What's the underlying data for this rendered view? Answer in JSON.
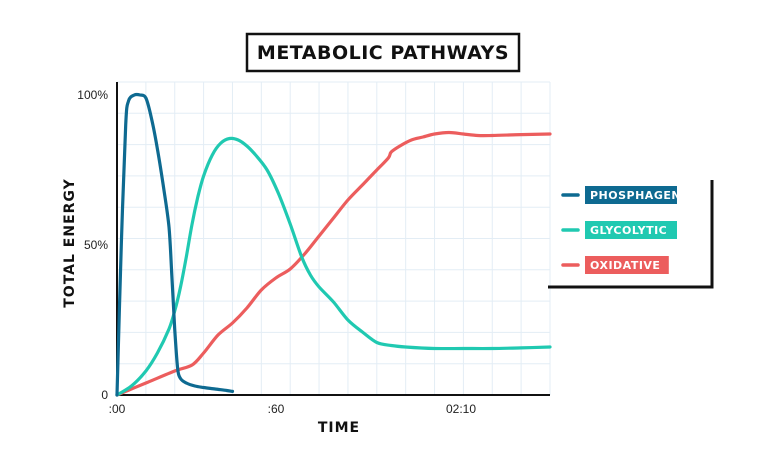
{
  "chart_data": {
    "type": "line",
    "title": "METABOLIC PATHWAYS",
    "xlabel": "TIME",
    "ylabel": "TOTAL ENERGY",
    "xlim": [
      0,
      150
    ],
    "ylim": [
      0,
      100
    ],
    "x_ticks": [
      {
        "value": 0,
        "label": ":00"
      },
      {
        "value": 60,
        "label": ":60"
      },
      {
        "value": 120,
        "label": "02:10"
      }
    ],
    "y_ticks": [
      {
        "value": 0,
        "label": "0"
      },
      {
        "value": 50,
        "label": "50%"
      },
      {
        "value": 100,
        "label": "100%"
      }
    ],
    "grid": true,
    "legend_position": "right",
    "series": [
      {
        "name": "PHOSPHAGEN",
        "color": "#0e6a91",
        "x": [
          0,
          1.5,
          3,
          4,
          6,
          8,
          10,
          12,
          14,
          16,
          18,
          19,
          20,
          21,
          22,
          24,
          27,
          30,
          34,
          38,
          40
        ],
        "y": [
          0,
          50,
          90,
          98,
          100,
          100,
          99,
          92,
          82,
          70,
          56,
          40,
          22,
          9,
          5.5,
          4,
          3,
          2.5,
          2,
          1.5,
          1.2
        ]
      },
      {
        "name": "GLYCOLYTIC",
        "color": "#20c9b1",
        "x": [
          0,
          5,
          10,
          14,
          18,
          20,
          22,
          24,
          26,
          28,
          30,
          33,
          36,
          39,
          42,
          45,
          48,
          52,
          56,
          60,
          64,
          67,
          70,
          75,
          80,
          85,
          90,
          95,
          100,
          110,
          120,
          130,
          140,
          150
        ],
        "y": [
          0,
          3,
          8,
          14,
          22,
          28,
          36,
          46,
          57,
          66,
          73,
          80,
          84,
          85.5,
          85,
          83,
          80,
          75,
          67,
          57,
          46,
          40,
          36,
          31,
          25,
          21,
          17.5,
          16.5,
          16,
          15.5,
          15.5,
          15.5,
          15.7,
          16
        ]
      },
      {
        "name": "OXIDATIVE",
        "color": "#ec5d5d",
        "x": [
          0,
          10,
          20,
          26,
          30,
          35,
          40,
          45,
          50,
          55,
          60,
          65,
          70,
          75,
          80,
          85,
          90,
          94,
          95,
          98,
          102,
          106,
          110,
          115,
          120,
          125,
          130,
          140,
          150
        ],
        "y": [
          0,
          4,
          8,
          10,
          14,
          20,
          24,
          29,
          35,
          39,
          42,
          47,
          53,
          59,
          65,
          70,
          75,
          79,
          81,
          83,
          85,
          86,
          87,
          87.5,
          87,
          86.5,
          86.5,
          86.8,
          87
        ]
      }
    ]
  }
}
